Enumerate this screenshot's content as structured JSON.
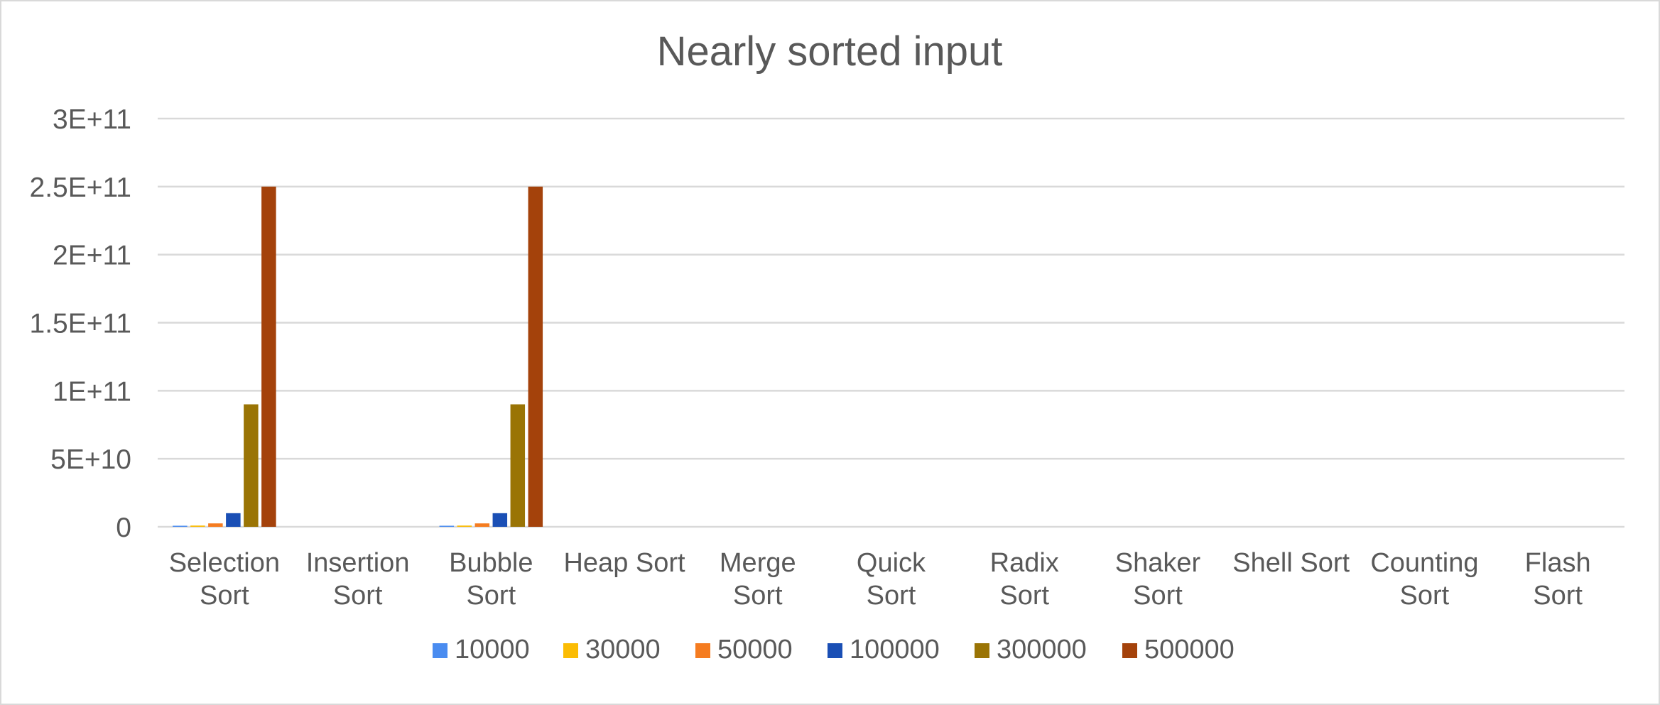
{
  "chart_data": {
    "type": "bar",
    "title": "Nearly sorted input",
    "xlabel": "",
    "ylabel": "",
    "ylim": [
      0,
      300000000000
    ],
    "grid": true,
    "legend_position": "bottom",
    "y_ticks": [
      {
        "value": 0,
        "label": "0"
      },
      {
        "value": 50000000000,
        "label": "5E+10"
      },
      {
        "value": 100000000000,
        "label": "1E+11"
      },
      {
        "value": 150000000000,
        "label": "1.5E+11"
      },
      {
        "value": 200000000000,
        "label": "2E+11"
      },
      {
        "value": 250000000000,
        "label": "2.5E+11"
      },
      {
        "value": 300000000000,
        "label": "3E+11"
      }
    ],
    "categories": [
      [
        "Selection",
        "Sort"
      ],
      [
        "Insertion",
        "Sort"
      ],
      [
        "Bubble",
        "Sort"
      ],
      [
        "Heap Sort"
      ],
      [
        "Merge",
        "Sort"
      ],
      [
        "Quick",
        "Sort"
      ],
      [
        "Radix",
        "Sort"
      ],
      [
        "Shaker",
        "Sort"
      ],
      [
        "Shell Sort"
      ],
      [
        "Counting",
        "Sort"
      ],
      [
        "Flash",
        "Sort"
      ]
    ],
    "series": [
      {
        "name": "10000",
        "color": "#4a8cf0",
        "values": [
          100000000,
          0,
          100000000,
          0,
          0,
          0,
          0,
          0,
          0,
          0,
          0
        ]
      },
      {
        "name": "30000",
        "color": "#fbbc04",
        "values": [
          900000000,
          0,
          900000000,
          0,
          0,
          0,
          0,
          0,
          0,
          0,
          0
        ]
      },
      {
        "name": "50000",
        "color": "#f57c20",
        "values": [
          2500000000,
          0,
          2500000000,
          0,
          0,
          0,
          0,
          0,
          0,
          0,
          0
        ]
      },
      {
        "name": "100000",
        "color": "#1a4fb5",
        "values": [
          10000000000,
          0,
          10000000000,
          0,
          0,
          0,
          0,
          0,
          0,
          0,
          0
        ]
      },
      {
        "name": "300000",
        "color": "#9a7405",
        "values": [
          90000000000,
          0,
          90000000000,
          0,
          0,
          0,
          0,
          0,
          0,
          0,
          0
        ]
      },
      {
        "name": "500000",
        "color": "#a4420b",
        "values": [
          250000000000,
          0,
          250000000000,
          0,
          0,
          0,
          0,
          0,
          0,
          0,
          0
        ]
      }
    ]
  }
}
